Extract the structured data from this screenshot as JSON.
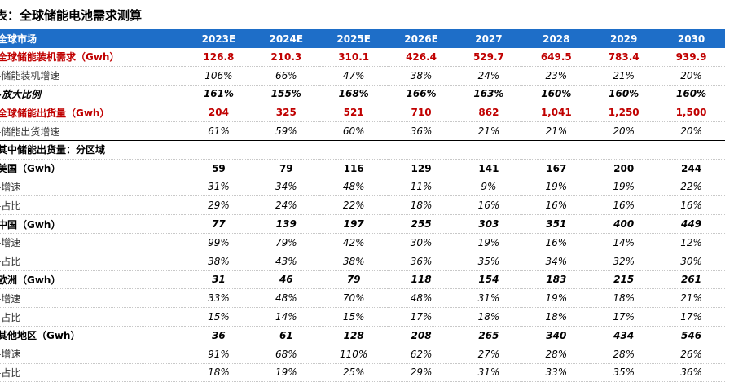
{
  "header": {
    "title": "表：全球储能电池需求测算"
  },
  "table": {
    "columns": [
      "全球市场",
      "2023E",
      "2024E",
      "2025E",
      "2026E",
      "2027",
      "2028",
      "2029",
      "2030"
    ],
    "rows": [
      {
        "label": "全球储能装机需求（Gwh）",
        "values": [
          "126.8",
          "210.3",
          "310.1",
          "426.4",
          "529.7",
          "649.5",
          "783.4",
          "939.9"
        ]
      },
      {
        "label": "-储能装机增速",
        "values": [
          "106%",
          "66%",
          "47%",
          "38%",
          "24%",
          "23%",
          "21%",
          "20%"
        ]
      },
      {
        "label": "-放大比例",
        "values": [
          "161%",
          "155%",
          "168%",
          "166%",
          "163%",
          "160%",
          "160%",
          "160%"
        ]
      },
      {
        "label": "全球储能出货量（Gwh）",
        "values": [
          "204",
          "325",
          "521",
          "710",
          "862",
          "1,041",
          "1,250",
          "1,500"
        ]
      },
      {
        "label": "-储能出货增速",
        "values": [
          "61%",
          "59%",
          "60%",
          "36%",
          "21%",
          "21%",
          "20%",
          "20%"
        ]
      },
      {
        "label": "其中储能出货量：分区域",
        "values": []
      },
      {
        "label": "美国（Gwh）",
        "values": [
          "59",
          "79",
          "116",
          "129",
          "141",
          "167",
          "200",
          "244"
        ]
      },
      {
        "label": "-增速",
        "values": [
          "31%",
          "34%",
          "48%",
          "11%",
          "9%",
          "19%",
          "19%",
          "22%"
        ]
      },
      {
        "label": "-占比",
        "values": [
          "29%",
          "24%",
          "22%",
          "18%",
          "16%",
          "16%",
          "16%",
          "16%"
        ]
      },
      {
        "label": "中国（Gwh）",
        "values": [
          "77",
          "139",
          "197",
          "255",
          "303",
          "351",
          "400",
          "449"
        ]
      },
      {
        "label": "-增速",
        "values": [
          "99%",
          "79%",
          "42%",
          "30%",
          "19%",
          "16%",
          "14%",
          "12%"
        ]
      },
      {
        "label": "-占比",
        "values": [
          "38%",
          "43%",
          "38%",
          "36%",
          "35%",
          "34%",
          "32%",
          "30%"
        ]
      },
      {
        "label": "欧洲（Gwh）",
        "values": [
          "31",
          "46",
          "79",
          "118",
          "154",
          "183",
          "215",
          "261"
        ]
      },
      {
        "label": "-增速",
        "values": [
          "33%",
          "48%",
          "70%",
          "48%",
          "31%",
          "19%",
          "18%",
          "21%"
        ]
      },
      {
        "label": "-占比",
        "values": [
          "15%",
          "14%",
          "15%",
          "17%",
          "18%",
          "18%",
          "17%",
          "17%"
        ]
      },
      {
        "label": "其他地区（Gwh）",
        "values": [
          "36",
          "61",
          "128",
          "208",
          "265",
          "340",
          "434",
          "546"
        ]
      },
      {
        "label": "-增速",
        "values": [
          "91%",
          "68%",
          "110%",
          "62%",
          "27%",
          "28%",
          "28%",
          "26%"
        ]
      },
      {
        "label": "-占比",
        "values": [
          "18%",
          "19%",
          "25%",
          "29%",
          "31%",
          "33%",
          "35%",
          "36%"
        ]
      }
    ]
  }
}
